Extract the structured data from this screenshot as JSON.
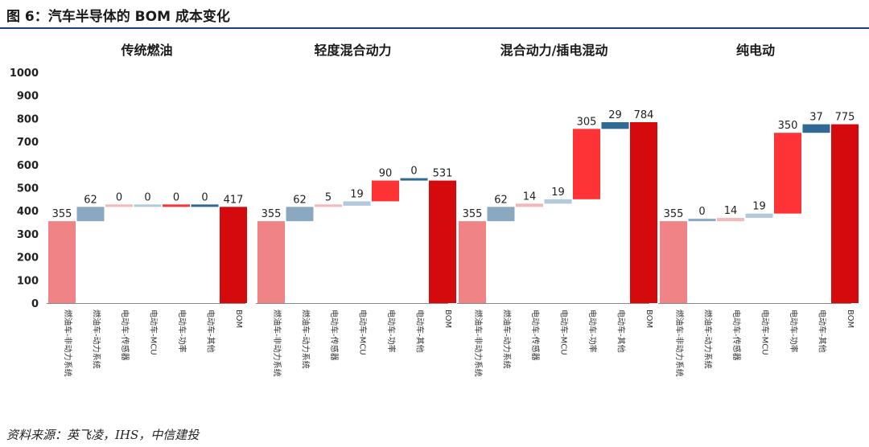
{
  "figure": {
    "title": "图 6：汽车半导体的 BOM 成本变化",
    "source": "资料来源：英飞凌，IHS，中信建投"
  },
  "colors": {
    "base": "#f08386",
    "powertrain": "#8aa8c0",
    "light_red": "#f6b5b6",
    "light_blue": "#b4c9da",
    "mid_red": "#f25d5e",
    "bright_red": "#fe3336",
    "dark_blue": "#2e6a94",
    "bom": "#d40a0c"
  },
  "chart_data": {
    "type": "bar",
    "subtype": "waterfall",
    "ylim": [
      0,
      1000
    ],
    "yticks": [
      0,
      100,
      200,
      300,
      400,
      500,
      600,
      700,
      800,
      900,
      1000
    ],
    "categories": [
      "燃油车-非动力系统",
      "燃油车-动力系统",
      "电动车-传感器",
      "电动车-MCU",
      "电动车-功率",
      "电动车-其他",
      "BOM"
    ],
    "panels": [
      {
        "title": "传统燃油",
        "values": [
          355,
          62,
          0,
          0,
          0,
          0,
          417
        ]
      },
      {
        "title": "轻度混合动力",
        "values": [
          355,
          62,
          5,
          19,
          90,
          0,
          531
        ]
      },
      {
        "title": "混合动力/插电混动",
        "values": [
          355,
          62,
          14,
          19,
          305,
          29,
          784
        ]
      },
      {
        "title": "纯电动",
        "values": [
          355,
          0,
          14,
          19,
          350,
          37,
          775
        ]
      }
    ]
  }
}
